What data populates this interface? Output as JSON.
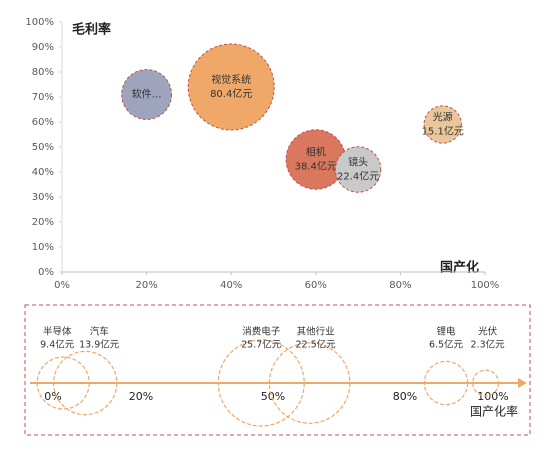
{
  "chart_data": [
    {
      "type": "bubble",
      "y_axis_label": "毛利率",
      "x_axis_label": "国产化",
      "categories": [
        "软件…",
        "视觉系统",
        "相机",
        "镜头",
        "光源"
      ],
      "x": [
        20,
        40,
        60,
        70,
        90
      ],
      "y": [
        71,
        74,
        45,
        41,
        59
      ],
      "sizes": [
        27,
        80.4,
        38.4,
        22.4,
        15.1
      ],
      "value_labels": [
        null,
        "80.4亿元",
        "38.4亿元",
        "22.4亿元",
        "15.1亿元"
      ],
      "colors": [
        "#9ea4bb",
        "#f0a868",
        "#d9785f",
        "#c9c9c9",
        "#e9c79b"
      ],
      "edge_color": "#c0504d",
      "xlim": [
        0,
        100
      ],
      "xticks": [
        {
          "value": 0,
          "label": "0%"
        },
        {
          "value": 20,
          "label": "20%"
        },
        {
          "value": 40,
          "label": "40%"
        },
        {
          "value": 60,
          "label": "60%"
        },
        {
          "value": 80,
          "label": "80%"
        },
        {
          "value": 100,
          "label": "100%"
        }
      ],
      "ylim": [
        0,
        100
      ],
      "yticks": [
        {
          "value": 0,
          "label": "0%"
        },
        {
          "value": 10,
          "label": "10%"
        },
        {
          "value": 20,
          "label": "20%"
        },
        {
          "value": 30,
          "label": "30%"
        },
        {
          "value": 40,
          "label": "40%"
        },
        {
          "value": 50,
          "label": "50%"
        },
        {
          "value": 60,
          "label": "60%"
        },
        {
          "value": 70,
          "label": "70%"
        },
        {
          "value": 80,
          "label": "80%"
        },
        {
          "value": 90,
          "label": "90%"
        },
        {
          "value": 100,
          "label": "100%"
        }
      ]
    },
    {
      "type": "bubble-line",
      "x_axis_label": "国产化率",
      "categories": [
        "半导体",
        "汽车",
        "消费电子",
        "其他行业",
        "锂电",
        "光伏"
      ],
      "x": [
        3,
        8,
        48,
        59,
        90,
        99
      ],
      "sizes": [
        9.4,
        13.9,
        25.7,
        22.5,
        6.5,
        2.3
      ],
      "value_labels": [
        "9.4亿元",
        "13.9亿元",
        "25.7亿元",
        "22.5亿元",
        "6.5亿元",
        "2.3亿元"
      ],
      "color": "#f0a868",
      "xlim": [
        0,
        100
      ],
      "xticks": [
        {
          "value": 0,
          "label": "0%"
        },
        {
          "value": 20,
          "label": "20%"
        },
        {
          "value": 50,
          "label": "50%"
        },
        {
          "value": 80,
          "label": "80%"
        },
        {
          "value": 100,
          "label": "100%"
        }
      ]
    }
  ]
}
